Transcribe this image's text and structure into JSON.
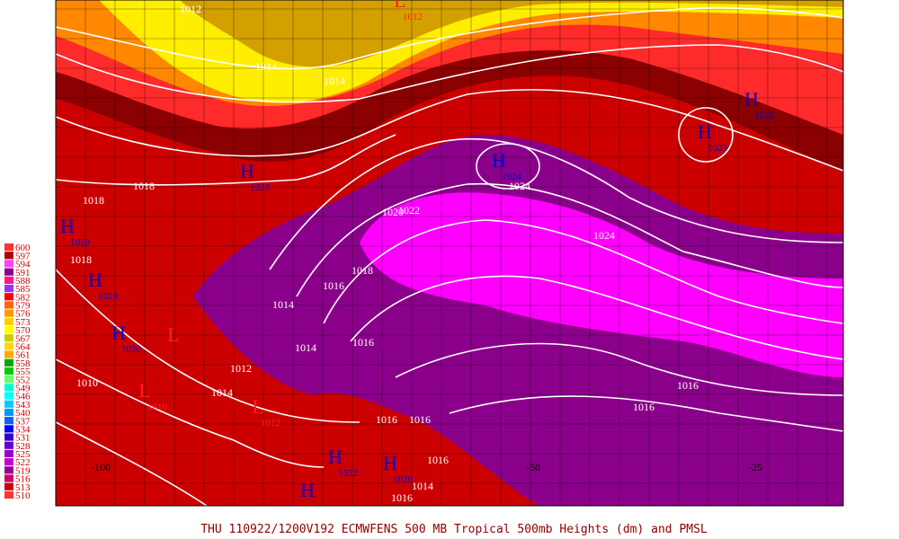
{
  "caption": "THU 110922/1200V192   ECMWFENS  500 MB Tropical 500mb Heights (dm) and PMSL",
  "legend": {
    "labels": [
      "600",
      "597",
      "594",
      "591",
      "588",
      "585",
      "582",
      "579",
      "576",
      "573",
      "570",
      "567",
      "564",
      "561",
      "558",
      "555",
      "552",
      "549",
      "546",
      "543",
      "540",
      "537",
      "534",
      "531",
      "528",
      "525",
      "522",
      "519",
      "516",
      "513",
      "510"
    ]
  },
  "isobars": [
    "1012",
    "1014",
    "1014",
    "1018",
    "1018",
    "1018",
    "1020",
    "1022",
    "1024",
    "1024",
    "1018",
    "1016",
    "1014",
    "1014",
    "1016",
    "1012",
    "1014",
    "1010",
    "1016",
    "1016",
    "1016",
    "1016",
    "1016",
    "1014",
    "1016"
  ],
  "highs": [
    {
      "letter": "H",
      "value": "1020"
    },
    {
      "letter": "H",
      "value": "1024"
    },
    {
      "letter": "H",
      "value": "1023"
    },
    {
      "letter": "H",
      "value": "1025"
    },
    {
      "letter": "H",
      "value": "1019"
    },
    {
      "letter": "H",
      "value": "1019"
    },
    {
      "letter": "H",
      "value": "1020"
    },
    {
      "letter": "H",
      "value": "1022"
    },
    {
      "letter": "H",
      "value": "1020"
    },
    {
      "letter": "H"
    }
  ],
  "lows": [
    {
      "letter": "L",
      "value": "1012"
    },
    {
      "letter": "L"
    },
    {
      "letter": "L",
      "value": "1010"
    },
    {
      "letter": "L",
      "value": "1012"
    }
  ],
  "longitudes": [
    "-100",
    "-50",
    "-25"
  ]
}
